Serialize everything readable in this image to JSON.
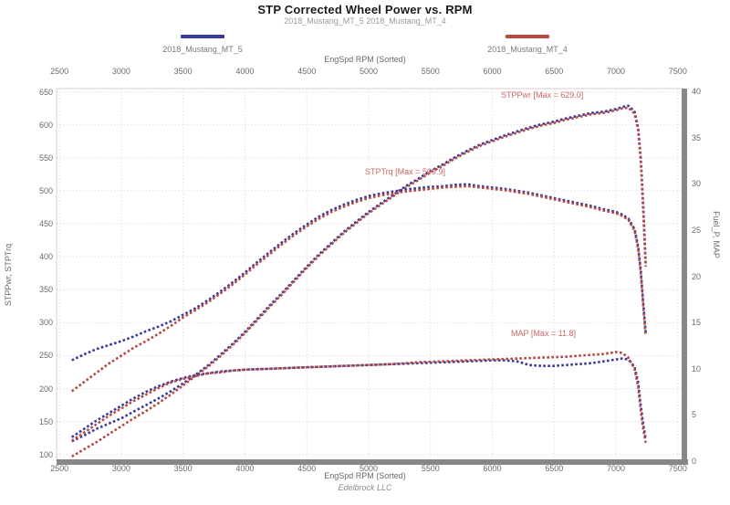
{
  "title": "STP Corrected Wheel Power vs. RPM",
  "subtitle": "2018_Mustang_MT_5 2018_Mustang_MT_4",
  "legend": {
    "items": [
      {
        "label": "2018_Mustang_MT_5",
        "color": "#3a3a99"
      },
      {
        "label": "2018_Mustang_MT_4",
        "color": "#b54a45"
      }
    ]
  },
  "axes": {
    "x_label": "EngSpd RPM  (Sorted)",
    "left_label": "STPPwr,  STPTrq",
    "right_label": "Fuel_P,  MAP",
    "x_ticks": [
      2500,
      3000,
      3500,
      4000,
      4500,
      5000,
      5500,
      6000,
      6500,
      7000,
      7500
    ],
    "left_ticks": [
      650,
      600,
      550,
      500,
      450,
      400,
      350,
      300,
      250,
      200,
      150,
      100
    ],
    "right_ticks": [
      40,
      35,
      30,
      25,
      20,
      15,
      10,
      5,
      0
    ]
  },
  "annotations": {
    "power": "STPPwr  [Max = 629.0]",
    "torque": "STPTrq  [Max = 509.9]",
    "map": "MAP  [Max = 11.8]"
  },
  "footer": "Edelbrock LLC",
  "chart_data": {
    "type": "line",
    "title": "STP Corrected Wheel Power vs. RPM",
    "xlabel": "EngSpd RPM (Sorted)",
    "ylabel_left": "STPPwr, STPTrq",
    "ylabel_right": "Fuel_P, MAP",
    "xlim": [
      2500,
      7500
    ],
    "ylim_left": [
      100,
      650
    ],
    "ylim_right": [
      0,
      40
    ],
    "grid": true,
    "legend_position": "top",
    "colors": {
      "run5": "#3a3a99",
      "run4": "#b54a45",
      "annotation": "#cc6666"
    },
    "series": [
      {
        "name": "STPPwr 2018_Mustang_MT_5",
        "axis": "left",
        "color": "#3a3a99",
        "max": 629.0,
        "points": [
          [
            2600,
            120
          ],
          [
            2700,
            129
          ],
          [
            2800,
            139
          ],
          [
            2900,
            147
          ],
          [
            3000,
            155
          ],
          [
            3100,
            165
          ],
          [
            3200,
            175
          ],
          [
            3300,
            185
          ],
          [
            3400,
            196
          ],
          [
            3500,
            208
          ],
          [
            3600,
            221
          ],
          [
            3700,
            235
          ],
          [
            3800,
            251
          ],
          [
            3900,
            268
          ],
          [
            4000,
            286
          ],
          [
            4100,
            306
          ],
          [
            4200,
            326
          ],
          [
            4300,
            345
          ],
          [
            4400,
            365
          ],
          [
            4500,
            385
          ],
          [
            4600,
            404
          ],
          [
            4700,
            421
          ],
          [
            4800,
            438
          ],
          [
            4900,
            453
          ],
          [
            5000,
            468
          ],
          [
            5100,
            481
          ],
          [
            5200,
            494
          ],
          [
            5300,
            507
          ],
          [
            5400,
            518
          ],
          [
            5500,
            530
          ],
          [
            5600,
            540
          ],
          [
            5700,
            551
          ],
          [
            5800,
            561
          ],
          [
            5900,
            570
          ],
          [
            6000,
            577
          ],
          [
            6100,
            584
          ],
          [
            6200,
            590
          ],
          [
            6300,
            596
          ],
          [
            6400,
            601
          ],
          [
            6500,
            605
          ],
          [
            6600,
            610
          ],
          [
            6700,
            614
          ],
          [
            6800,
            618
          ],
          [
            6900,
            620
          ],
          [
            7000,
            624
          ],
          [
            7050,
            627
          ],
          [
            7100,
            629
          ],
          [
            7150,
            620
          ],
          [
            7180,
            595
          ],
          [
            7200,
            550
          ],
          [
            7220,
            480
          ],
          [
            7240,
            390
          ]
        ]
      },
      {
        "name": "STPPwr 2018_Mustang_MT_4",
        "axis": "left",
        "color": "#b54a45",
        "max": 626.5,
        "points": [
          [
            2600,
            97
          ],
          [
            2700,
            108
          ],
          [
            2800,
            119
          ],
          [
            2900,
            131
          ],
          [
            3000,
            143
          ],
          [
            3100,
            155
          ],
          [
            3200,
            166
          ],
          [
            3300,
            178
          ],
          [
            3400,
            191
          ],
          [
            3500,
            205
          ],
          [
            3600,
            219
          ],
          [
            3700,
            233
          ],
          [
            3800,
            249
          ],
          [
            3900,
            266
          ],
          [
            4000,
            284
          ],
          [
            4100,
            304
          ],
          [
            4200,
            324
          ],
          [
            4300,
            343
          ],
          [
            4400,
            363
          ],
          [
            4500,
            383
          ],
          [
            4600,
            402
          ],
          [
            4700,
            419
          ],
          [
            4800,
            436
          ],
          [
            4900,
            451
          ],
          [
            5000,
            466
          ],
          [
            5100,
            479
          ],
          [
            5200,
            492
          ],
          [
            5300,
            505
          ],
          [
            5400,
            516
          ],
          [
            5500,
            528
          ],
          [
            5600,
            538
          ],
          [
            5700,
            549
          ],
          [
            5800,
            559
          ],
          [
            5900,
            568
          ],
          [
            6000,
            575
          ],
          [
            6100,
            582
          ],
          [
            6200,
            588
          ],
          [
            6300,
            594
          ],
          [
            6400,
            599
          ],
          [
            6500,
            603
          ],
          [
            6600,
            608
          ],
          [
            6700,
            612
          ],
          [
            6800,
            616
          ],
          [
            6900,
            618
          ],
          [
            7000,
            622
          ],
          [
            7050,
            625
          ],
          [
            7100,
            626
          ],
          [
            7150,
            617
          ],
          [
            7180,
            592
          ],
          [
            7200,
            545
          ],
          [
            7220,
            470
          ],
          [
            7240,
            385
          ]
        ]
      },
      {
        "name": "STPTrq 2018_Mustang_MT_5",
        "axis": "left",
        "color": "#3a3a99",
        "max": 509.9,
        "points": [
          [
            2600,
            243
          ],
          [
            2700,
            252
          ],
          [
            2800,
            260
          ],
          [
            2900,
            266
          ],
          [
            3000,
            272
          ],
          [
            3100,
            279
          ],
          [
            3200,
            287
          ],
          [
            3300,
            294
          ],
          [
            3400,
            302
          ],
          [
            3500,
            312
          ],
          [
            3600,
            322
          ],
          [
            3700,
            334
          ],
          [
            3800,
            347
          ],
          [
            3900,
            361
          ],
          [
            4000,
            376
          ],
          [
            4100,
            392
          ],
          [
            4200,
            407
          ],
          [
            4300,
            422
          ],
          [
            4400,
            436
          ],
          [
            4500,
            449
          ],
          [
            4600,
            461
          ],
          [
            4700,
            471
          ],
          [
            4800,
            479
          ],
          [
            4900,
            486
          ],
          [
            5000,
            492
          ],
          [
            5100,
            496
          ],
          [
            5200,
            499
          ],
          [
            5300,
            502
          ],
          [
            5400,
            504
          ],
          [
            5500,
            506
          ],
          [
            5600,
            507
          ],
          [
            5700,
            509
          ],
          [
            5800,
            510
          ],
          [
            5900,
            507
          ],
          [
            6000,
            505
          ],
          [
            6100,
            503
          ],
          [
            6200,
            500
          ],
          [
            6300,
            497
          ],
          [
            6400,
            493
          ],
          [
            6500,
            489
          ],
          [
            6600,
            485
          ],
          [
            6700,
            481
          ],
          [
            6800,
            477
          ],
          [
            6900,
            472
          ],
          [
            7000,
            468
          ],
          [
            7050,
            464
          ],
          [
            7100,
            458
          ],
          [
            7150,
            442
          ],
          [
            7180,
            415
          ],
          [
            7200,
            380
          ],
          [
            7220,
            330
          ],
          [
            7240,
            285
          ]
        ]
      },
      {
        "name": "STPTrq 2018_Mustang_MT_4",
        "axis": "left",
        "color": "#b54a45",
        "max": 507.4,
        "points": [
          [
            2600,
            196
          ],
          [
            2700,
            210
          ],
          [
            2800,
            224
          ],
          [
            2900,
            238
          ],
          [
            3000,
            250
          ],
          [
            3100,
            262
          ],
          [
            3200,
            272
          ],
          [
            3300,
            283
          ],
          [
            3400,
            295
          ],
          [
            3500,
            308
          ],
          [
            3600,
            319
          ],
          [
            3700,
            331
          ],
          [
            3800,
            344
          ],
          [
            3900,
            358
          ],
          [
            4000,
            373
          ],
          [
            4100,
            389
          ],
          [
            4200,
            404
          ],
          [
            4300,
            419
          ],
          [
            4400,
            433
          ],
          [
            4500,
            446
          ],
          [
            4600,
            458
          ],
          [
            4700,
            468
          ],
          [
            4800,
            476
          ],
          [
            4900,
            483
          ],
          [
            5000,
            489
          ],
          [
            5100,
            493
          ],
          [
            5200,
            496
          ],
          [
            5300,
            499
          ],
          [
            5400,
            501
          ],
          [
            5500,
            503
          ],
          [
            5600,
            505
          ],
          [
            5700,
            506
          ],
          [
            5800,
            507
          ],
          [
            5900,
            505
          ],
          [
            6000,
            503
          ],
          [
            6100,
            501
          ],
          [
            6200,
            498
          ],
          [
            6300,
            495
          ],
          [
            6400,
            491
          ],
          [
            6500,
            487
          ],
          [
            6600,
            483
          ],
          [
            6700,
            479
          ],
          [
            6800,
            475
          ],
          [
            6900,
            470
          ],
          [
            7000,
            466
          ],
          [
            7050,
            462
          ],
          [
            7100,
            456
          ],
          [
            7150,
            440
          ],
          [
            7180,
            412
          ],
          [
            7200,
            376
          ],
          [
            7220,
            325
          ],
          [
            7240,
            280
          ]
        ]
      },
      {
        "name": "MAP 2018_Mustang_MT_5",
        "axis": "right",
        "color": "#3a3a99",
        "max": 11.1,
        "points": [
          [
            2600,
            2.6
          ],
          [
            2700,
            3.5
          ],
          [
            2800,
            4.4
          ],
          [
            2900,
            5.2
          ],
          [
            3000,
            6.0
          ],
          [
            3100,
            6.8
          ],
          [
            3200,
            7.5
          ],
          [
            3300,
            8.1
          ],
          [
            3400,
            8.6
          ],
          [
            3500,
            9.0
          ],
          [
            3600,
            9.3
          ],
          [
            3700,
            9.5
          ],
          [
            3800,
            9.7
          ],
          [
            3900,
            9.8
          ],
          [
            4000,
            9.9
          ],
          [
            4200,
            10.0
          ],
          [
            4400,
            10.1
          ],
          [
            4600,
            10.2
          ],
          [
            4800,
            10.3
          ],
          [
            5000,
            10.4
          ],
          [
            5200,
            10.5
          ],
          [
            5400,
            10.6
          ],
          [
            5600,
            10.7
          ],
          [
            5800,
            10.8
          ],
          [
            6000,
            10.9
          ],
          [
            6100,
            10.9
          ],
          [
            6200,
            10.8
          ],
          [
            6300,
            10.4
          ],
          [
            6400,
            10.3
          ],
          [
            6500,
            10.3
          ],
          [
            6600,
            10.4
          ],
          [
            6700,
            10.5
          ],
          [
            6800,
            10.6
          ],
          [
            6900,
            10.8
          ],
          [
            7000,
            11.0
          ],
          [
            7050,
            11.1
          ],
          [
            7100,
            11.0
          ],
          [
            7150,
            10.2
          ],
          [
            7180,
            8.5
          ],
          [
            7200,
            6.0
          ],
          [
            7220,
            4.0
          ],
          [
            7240,
            2.4
          ]
        ]
      },
      {
        "name": "MAP 2018_Mustang_MT_4",
        "axis": "right",
        "color": "#b54a45",
        "max": 11.8,
        "points": [
          [
            2600,
            2.2
          ],
          [
            2700,
            3.1
          ],
          [
            2800,
            4.0
          ],
          [
            2900,
            4.9
          ],
          [
            3000,
            5.7
          ],
          [
            3100,
            6.5
          ],
          [
            3200,
            7.2
          ],
          [
            3300,
            7.9
          ],
          [
            3400,
            8.5
          ],
          [
            3500,
            8.9
          ],
          [
            3600,
            9.2
          ],
          [
            3700,
            9.5
          ],
          [
            3800,
            9.6
          ],
          [
            3900,
            9.8
          ],
          [
            4000,
            9.9
          ],
          [
            4200,
            10.0
          ],
          [
            4400,
            10.1
          ],
          [
            4600,
            10.2
          ],
          [
            4800,
            10.3
          ],
          [
            5000,
            10.4
          ],
          [
            5200,
            10.5
          ],
          [
            5400,
            10.7
          ],
          [
            5600,
            10.8
          ],
          [
            5800,
            10.9
          ],
          [
            6000,
            11.0
          ],
          [
            6200,
            11.1
          ],
          [
            6400,
            11.2
          ],
          [
            6600,
            11.3
          ],
          [
            6800,
            11.5
          ],
          [
            6900,
            11.6
          ],
          [
            7000,
            11.8
          ],
          [
            7050,
            11.7
          ],
          [
            7100,
            11.2
          ],
          [
            7150,
            10.0
          ],
          [
            7180,
            8.0
          ],
          [
            7200,
            5.5
          ],
          [
            7220,
            3.5
          ],
          [
            7240,
            2.0
          ]
        ]
      }
    ]
  }
}
